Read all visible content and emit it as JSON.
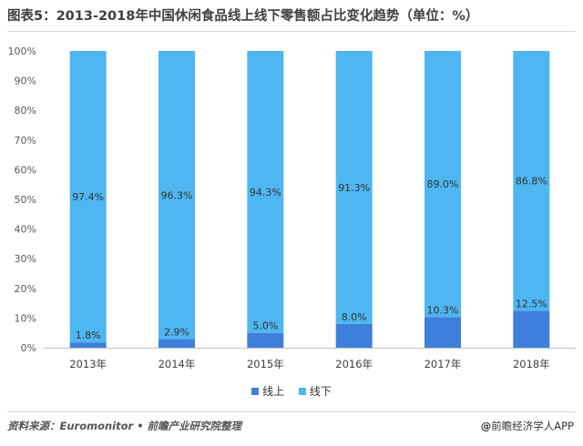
{
  "header": {
    "title": "图表5：2013-2018年中国休闲食品线上线下零售额占比变化趋势（单位：%）"
  },
  "chart_data": {
    "type": "bar",
    "stacked": true,
    "categories": [
      "2013年",
      "2014年",
      "2015年",
      "2016年",
      "2017年",
      "2018年"
    ],
    "series": [
      {
        "name": "线上",
        "values": [
          1.8,
          2.9,
          5.0,
          8.0,
          10.3,
          12.5
        ],
        "labels": [
          "1.8%",
          "2.9%",
          "5.0%",
          "8.0%",
          "10.3%",
          "12.5%"
        ],
        "color": "#3f7fdc"
      },
      {
        "name": "线下",
        "values": [
          97.4,
          96.3,
          94.3,
          91.3,
          89.0,
          86.8
        ],
        "labels": [
          "97.4%",
          "96.3%",
          "94.3%",
          "91.3%",
          "89.0%",
          "86.8%"
        ],
        "color": "#4eb6f0"
      }
    ],
    "ylim": [
      0,
      100
    ],
    "yticks": [
      "0%",
      "10%",
      "20%",
      "30%",
      "40%",
      "50%",
      "60%",
      "70%",
      "80%",
      "90%",
      "100%"
    ],
    "legend_position": "bottom",
    "grid": false
  },
  "footer": {
    "source": "资料来源：Euromonitor • 前瞻产业研究院整理",
    "credit_prefix": "@",
    "credit": "前瞻经济学人APP"
  }
}
